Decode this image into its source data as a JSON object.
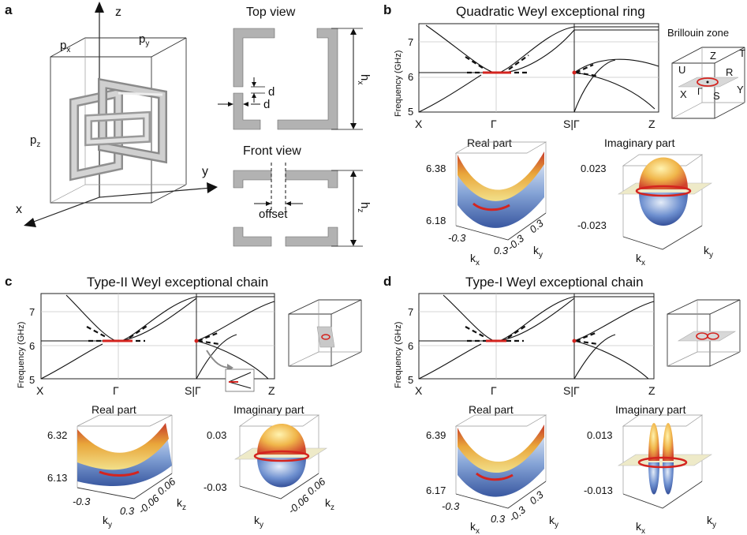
{
  "panels": {
    "a": {
      "label": "a",
      "axes": {
        "z": "z",
        "x": "x",
        "y": "y"
      },
      "lattice": {
        "px": "p",
        "px_sub": "x",
        "py": "p",
        "py_sub": "y",
        "pz": "p",
        "pz_sub": "z"
      },
      "top_view": {
        "title": "Top view",
        "d1": "d",
        "d2": "d",
        "h": "h",
        "h_sub": "x"
      },
      "front_view": {
        "title": "Front view",
        "offset": "offset",
        "h": "h",
        "h_sub": "z"
      }
    },
    "b": {
      "label": "b",
      "title": "Quadratic Weyl exceptional ring",
      "ylabel": "Frequency (GHz)",
      "yticks": [
        "7",
        "6",
        "5"
      ],
      "xticks": [
        "X",
        "Γ",
        "S|Γ",
        "Z"
      ],
      "bz": {
        "title": "Brillouin zone",
        "points": [
          "Z",
          "T",
          "U",
          "R",
          "X",
          "Γ",
          "S",
          "Y"
        ]
      },
      "real": {
        "title": "Real part",
        "ztop": "6.38",
        "zbot": "6.18",
        "ax1": "-0.3",
        "ax1b": "0.3",
        "ax2": "-0.3",
        "ax2b": "0.3",
        "k1": "k",
        "k1_sub": "x",
        "k2": "k",
        "k2_sub": "y"
      },
      "imag": {
        "title": "Imaginary part",
        "ztop": "0.023",
        "zbot": "-0.023",
        "k1": "k",
        "k1_sub": "x",
        "k2": "k",
        "k2_sub": "y"
      }
    },
    "c": {
      "label": "c",
      "title": "Type-II Weyl exceptional chain",
      "ylabel": "Frequency (GHz)",
      "yticks": [
        "7",
        "6",
        "5"
      ],
      "xticks": [
        "X",
        "Γ",
        "S|Γ",
        "Z"
      ],
      "real": {
        "title": "Real part",
        "ztop": "6.32",
        "zbot": "6.13",
        "ax1": "-0.3",
        "ax1b": "0.3",
        "ax2": "-0.06",
        "ax2b": "0.06",
        "k1": "k",
        "k1_sub": "y",
        "k2": "k",
        "k2_sub": "z"
      },
      "imag": {
        "title": "Imaginary part",
        "ztop": "0.03",
        "zbot": "-0.03",
        "ax2": "-0.06",
        "ax2b": "0.06",
        "k1": "k",
        "k1_sub": "y",
        "k2": "k",
        "k2_sub": "z"
      }
    },
    "d": {
      "label": "d",
      "title": "Type-I Weyl exceptional chain",
      "ylabel": "Frequency (GHz)",
      "yticks": [
        "7",
        "6",
        "5"
      ],
      "xticks": [
        "X",
        "Γ",
        "S|Γ",
        "Z"
      ],
      "real": {
        "title": "Real part",
        "ztop": "6.39",
        "zbot": "6.17",
        "ax1": "-0.3",
        "ax1b": "0.3",
        "ax2": "-0.3",
        "ax2b": "0.3",
        "k1": "k",
        "k1_sub": "x",
        "k2": "k",
        "k2_sub": "y"
      },
      "imag": {
        "title": "Imaginary part",
        "ztop": "0.013",
        "zbot": "-0.013",
        "k1": "k",
        "k1_sub": "x",
        "k2": "k",
        "k2_sub": "y"
      }
    }
  },
  "colors": {
    "ring": "#d4241f",
    "surface_warm": "#e8a23a",
    "surface_cool": "#4a6fb8",
    "plane": "#eeeac8"
  }
}
